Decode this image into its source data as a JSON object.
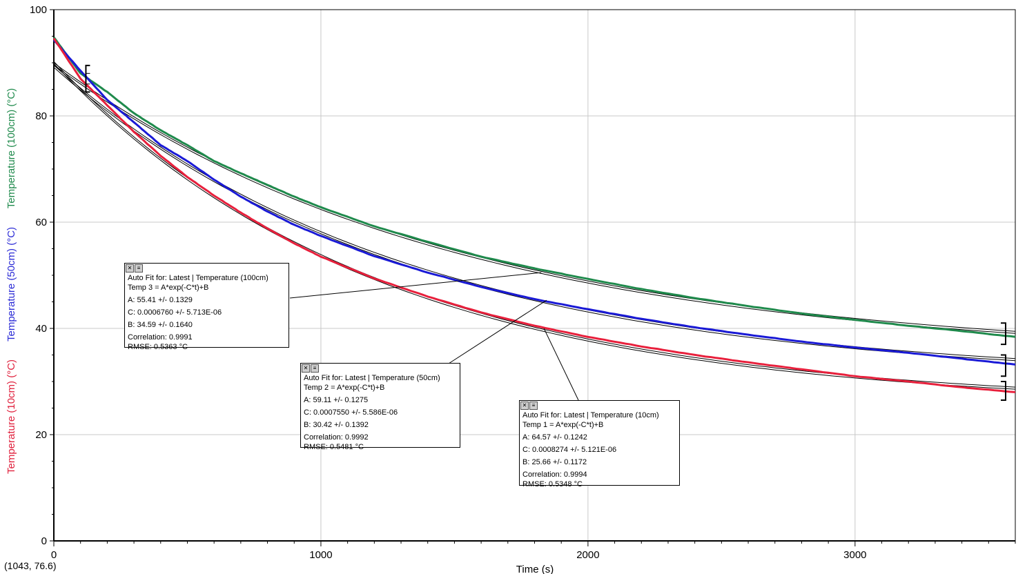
{
  "chart_data": {
    "type": "line",
    "xlabel": "Time (s)",
    "xlim": [
      0,
      3600
    ],
    "ylim": [
      0,
      100
    ],
    "x_ticks": [
      "0",
      "1000",
      "2000",
      "3000"
    ],
    "y_ticks": [
      "0",
      "20",
      "40",
      "60",
      "80",
      "100"
    ],
    "grid": true,
    "y_axis_titles": [
      {
        "text": "Temperature (100cm) (°C)",
        "color": "#1f8a4c"
      },
      {
        "text": "Temperature (50cm) (°C)",
        "color": "#2b2bd6"
      },
      {
        "text": "Temperature (10cm) (°C)",
        "color": "#e0203c"
      }
    ],
    "series": [
      {
        "name": "Temperature (100cm)",
        "color": "#1f8a4c",
        "x": [
          0,
          100,
          200,
          300,
          400,
          500,
          600,
          700,
          800,
          900,
          1000,
          1200,
          1400,
          1600,
          1800,
          2000,
          2200,
          2400,
          2600,
          2800,
          3000,
          3200,
          3400,
          3600
        ],
        "y": [
          94.8,
          88.0,
          84.5,
          80.5,
          77.3,
          74.5,
          71.5,
          69.2,
          67.0,
          64.8,
          62.8,
          59.2,
          56.3,
          53.5,
          51.3,
          49.3,
          47.4,
          45.7,
          44.2,
          42.8,
          41.6,
          40.5,
          39.5,
          38.4
        ]
      },
      {
        "name": "Temperature (50cm)",
        "color": "#1a1ad6",
        "x": [
          0,
          100,
          200,
          300,
          400,
          500,
          600,
          700,
          800,
          900,
          1000,
          1200,
          1400,
          1600,
          1800,
          2000,
          2200,
          2400,
          2600,
          2800,
          3000,
          3200,
          3400,
          3600
        ],
        "y": [
          94.3,
          88.5,
          83.0,
          78.8,
          74.5,
          71.5,
          68.0,
          64.8,
          62.0,
          59.5,
          57.4,
          53.6,
          50.5,
          47.8,
          45.5,
          43.6,
          41.8,
          40.2,
          38.8,
          37.5,
          36.4,
          35.4,
          34.3,
          33.2
        ]
      },
      {
        "name": "Temperature (10cm)",
        "color": "#e8203c",
        "x": [
          0,
          100,
          200,
          300,
          400,
          500,
          600,
          700,
          800,
          900,
          1000,
          1200,
          1400,
          1600,
          1800,
          2000,
          2200,
          2400,
          2600,
          2800,
          3000,
          3200,
          3400,
          3600
        ],
        "y": [
          94.6,
          87.0,
          82.0,
          77.0,
          72.5,
          68.5,
          65.0,
          61.8,
          58.8,
          56.0,
          53.5,
          49.4,
          46.0,
          43.0,
          40.5,
          38.4,
          36.6,
          35.0,
          33.6,
          32.3,
          31.0,
          30.0,
          28.9,
          28.0
        ]
      }
    ],
    "fits": [
      {
        "A": 55.41,
        "C": 0.000676,
        "B": 34.59
      },
      {
        "A": 59.11,
        "C": 0.000755,
        "B": 30.42
      },
      {
        "A": 64.57,
        "C": 0.0008274,
        "B": 25.66
      }
    ],
    "fit_range": [
      120,
      3600
    ],
    "annotations": [
      {
        "lines": [
          "Auto Fit for: Latest | Temperature (100cm)",
          "Temp 3 = A*exp(-C*t)+B",
          "A: 55.41 +/- 0.1329",
          "C: 0.0006760 +/- 5.713E-06",
          "B: 34.59 +/- 0.1640",
          "Correlation: 0.9991",
          "RMSE: 0.5363 °C"
        ]
      },
      {
        "lines": [
          "Auto Fit for: Latest | Temperature (50cm)",
          "Temp 2 = A*exp(-C*t)+B",
          "A: 59.11 +/- 0.1275",
          "C: 0.0007550 +/- 5.586E-06",
          "B: 30.42 +/- 0.1392",
          "Correlation: 0.9992",
          "RMSE: 0.5481 °C"
        ]
      },
      {
        "lines": [
          "Auto Fit for: Latest | Temperature (10cm)",
          "Temp 1 = A*exp(-C*t)+B",
          "A: 64.57 +/- 0.1242",
          "C: 0.0008274 +/- 5.121E-06",
          "B: 25.66 +/- 0.1172",
          "Correlation: 0.9994",
          "RMSE: 0.5348 °C"
        ]
      }
    ]
  },
  "status": {
    "coordinate_readout": "(1043, 76.6)"
  },
  "ui": {
    "close_glyph": "✕",
    "options_glyph": "≡"
  }
}
